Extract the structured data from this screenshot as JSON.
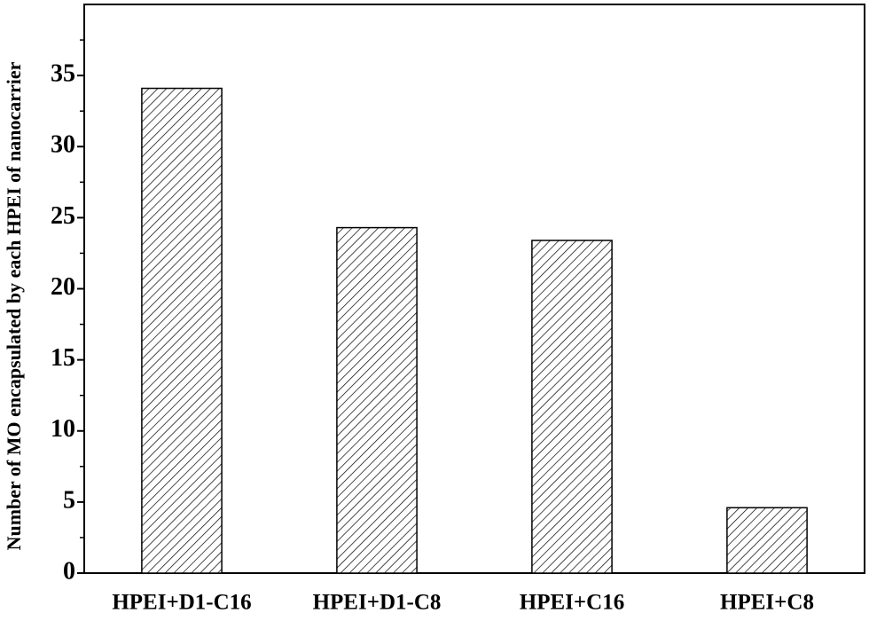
{
  "chart_data": {
    "type": "bar",
    "y_label": "Number of MO encapsulated by each HPEI of nanocarrier",
    "categories": [
      "HPEI+D1-C16",
      "HPEI+D1-C8",
      "HPEI+C16",
      "HPEI+C8"
    ],
    "values": [
      34.1,
      24.3,
      23.4,
      4.6
    ],
    "color": "#000000",
    "ylim": [
      0,
      40
    ],
    "yticks": [
      0,
      5,
      10,
      15,
      20,
      25,
      30,
      35
    ]
  }
}
